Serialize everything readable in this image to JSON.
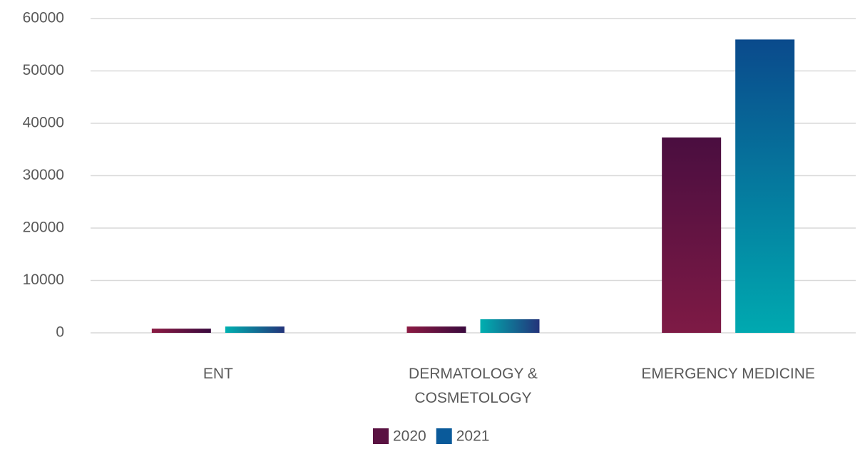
{
  "chart_data": {
    "type": "bar",
    "categories": [
      "ENT",
      "DERMATOLOGY & COSMETOLOGY",
      "EMERGENCY MEDICINE"
    ],
    "series": [
      {
        "name": "2020",
        "color": "#5a1242",
        "values": [
          800,
          1200,
          37300
        ]
      },
      {
        "name": "2021",
        "color": "#0a5a9a",
        "values": [
          1200,
          2600,
          56000
        ]
      }
    ],
    "ylim": [
      0,
      60000
    ],
    "yticks": [
      0,
      10000,
      20000,
      30000,
      40000,
      50000,
      60000
    ],
    "grid": true,
    "legend": "bottom"
  }
}
